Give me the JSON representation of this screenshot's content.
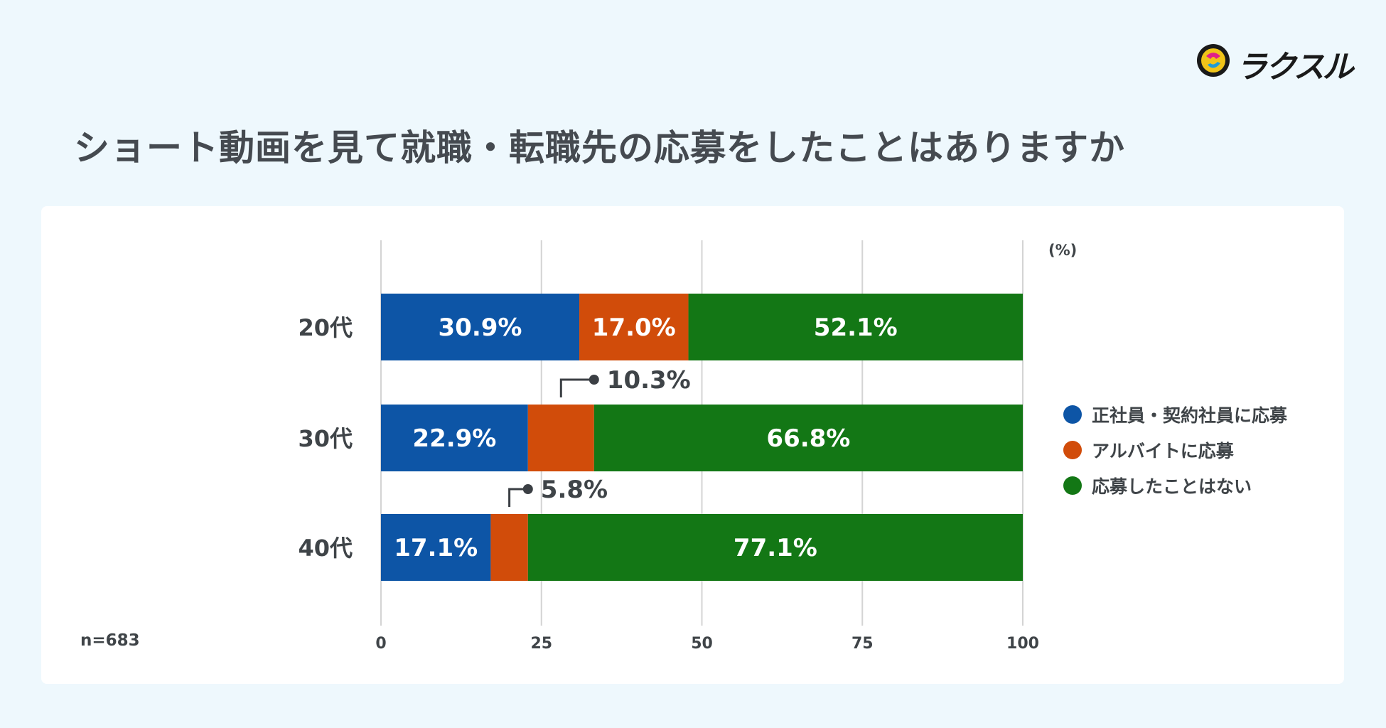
{
  "logo": {
    "text": "ラクスル"
  },
  "title": "ショート動画を見て就職・転職先の応募をしたことはありますか",
  "note": "n=683",
  "colors": {
    "series": [
      "#0d55a6",
      "#d14c0a",
      "#137715"
    ],
    "grid": "#d4d4d4",
    "callout": "#3b3f44"
  },
  "legend": [
    {
      "label": "正社員・契約社員に応募",
      "color": "#0d55a6"
    },
    {
      "label": "アルバイトに応募",
      "color": "#d14c0a"
    },
    {
      "label": "応募したことはない",
      "color": "#137715"
    }
  ],
  "chart_data": {
    "type": "bar",
    "orientation": "horizontal",
    "stacked": true,
    "unit_label": "(%)",
    "categories": [
      "20代",
      "30代",
      "40代"
    ],
    "series": [
      {
        "name": "正社員・契約社員に応募",
        "values": [
          30.9,
          22.9,
          17.1
        ],
        "labels": [
          "30.9%",
          "22.9%",
          "17.1%"
        ]
      },
      {
        "name": "アルバイトに応募",
        "values": [
          17.0,
          10.3,
          5.8
        ],
        "labels": [
          "17.0%",
          "10.3%",
          "5.8%"
        ]
      },
      {
        "name": "応募したことはない",
        "values": [
          52.1,
          66.8,
          77.1
        ],
        "labels": [
          "52.1%",
          "66.8%",
          "77.1%"
        ]
      }
    ],
    "xlim": [
      0,
      100
    ],
    "xticks": [
      0,
      25,
      50,
      75,
      100
    ],
    "xtick_labels": [
      "0",
      "25",
      "50",
      "75",
      "100"
    ],
    "grid": true,
    "legend_position": "right"
  }
}
